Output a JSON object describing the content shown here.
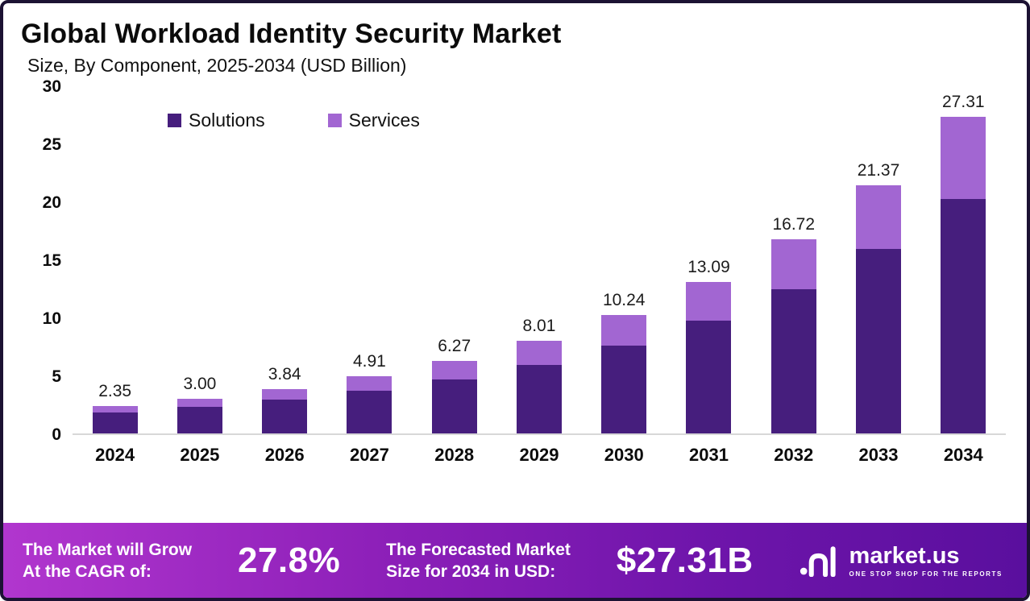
{
  "header": {
    "title": "Global Workload Identity Security Market",
    "subtitle": "Size, By Component, 2025-2034 (USD Billion)"
  },
  "chart_data": {
    "type": "bar",
    "stacked": true,
    "title": "Global Workload Identity Security Market",
    "subtitle": "Size, By Component, 2025-2034 (USD Billion)",
    "unit": "USD Billion",
    "categories": [
      "2024",
      "2025",
      "2026",
      "2027",
      "2028",
      "2029",
      "2030",
      "2031",
      "2032",
      "2033",
      "2034"
    ],
    "series": [
      {
        "name": "Solutions",
        "color": "#461e7d",
        "values": [
          1.8,
          2.3,
          2.9,
          3.65,
          4.65,
          5.9,
          7.55,
          9.7,
          12.4,
          15.9,
          20.2
        ]
      },
      {
        "name": "Services",
        "color": "#a266d2",
        "values": [
          0.55,
          0.7,
          0.94,
          1.26,
          1.62,
          2.11,
          2.69,
          3.39,
          4.32,
          5.47,
          7.11
        ]
      }
    ],
    "total_labels": [
      "2.35",
      "3.00",
      "3.84",
      "4.91",
      "6.27",
      "8.01",
      "10.24",
      "13.09",
      "16.72",
      "21.37",
      "27.31"
    ],
    "ylim": [
      0,
      30
    ],
    "yticks": [
      0,
      5,
      10,
      15,
      20,
      25,
      30
    ],
    "grid": false,
    "legend_position": "top-left"
  },
  "footer": {
    "cagr_label_line1": "The Market will Grow",
    "cagr_label_line2": "At the CAGR of:",
    "cagr_value": "27.8%",
    "forecast_label_line1": "The Forecasted Market",
    "forecast_label_line2": "Size for 2034 in USD:",
    "forecast_value": "$27.31B",
    "brand_name": "market.us",
    "brand_tagline": "One Stop Shop for the Reports"
  }
}
